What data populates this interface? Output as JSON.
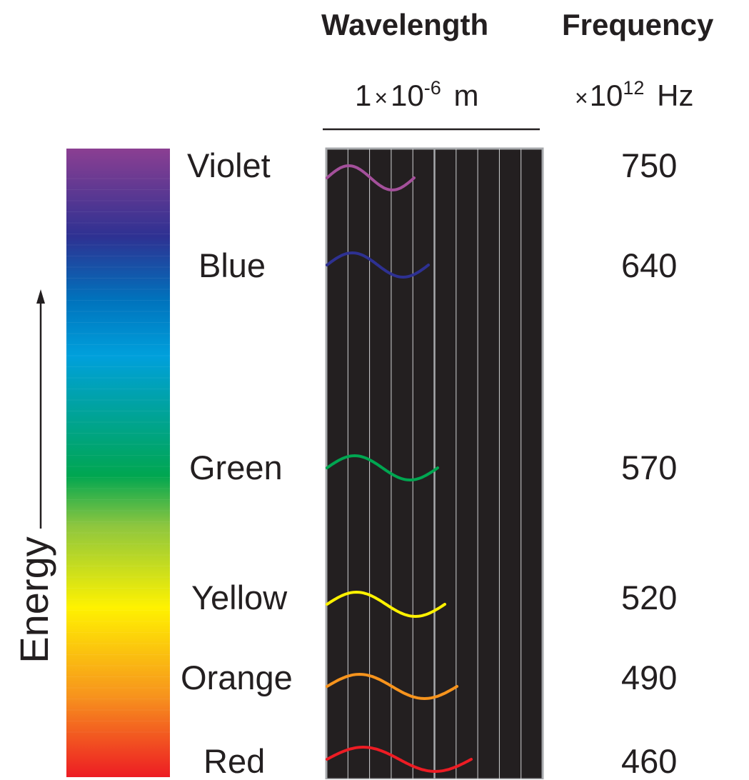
{
  "header": {
    "wavelength_title": "Wavelength",
    "frequency_title": "Frequency",
    "wavelength_unit_prefix": "1",
    "wavelength_unit_times": "×",
    "wavelength_unit_base": "10",
    "wavelength_unit_exp": "-6",
    "wavelength_unit_suffix": "m",
    "frequency_unit_times": "×",
    "frequency_unit_base": "10",
    "frequency_unit_exp": "12",
    "frequency_unit_suffix": "Hz"
  },
  "energy_label": "Energy",
  "colors": [
    {
      "name": "Violet",
      "frequency": "750",
      "wave_color": "#a4509b"
    },
    {
      "name": "Blue",
      "frequency": "640",
      "wave_color": "#2e3192"
    },
    {
      "name": "Green",
      "frequency": "570",
      "wave_color": "#00a651"
    },
    {
      "name": "Yellow",
      "frequency": "520",
      "wave_color": "#fff200"
    },
    {
      "name": "Orange",
      "frequency": "490",
      "wave_color": "#f7941d"
    },
    {
      "name": "Red",
      "frequency": "460",
      "wave_color": "#ed1c24"
    }
  ],
  "spectrum_stops": [
    "#8b3f92",
    "#2e3192",
    "#0072bc",
    "#00a0dc",
    "#00a651",
    "#8dc63f",
    "#fff200",
    "#f7941d",
    "#ed1c24"
  ],
  "panel_background": "#231f20"
}
